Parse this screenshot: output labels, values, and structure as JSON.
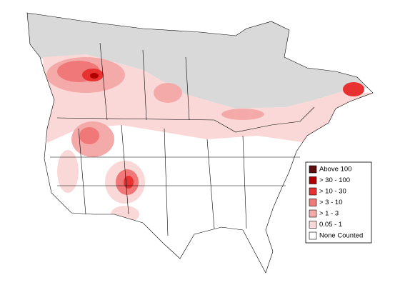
{
  "legend": {
    "items": [
      {
        "label": "Above 100",
        "color": "#5c0d0d"
      },
      {
        "label": "> 30 - 100",
        "color": "#b00000"
      },
      {
        "label": "> 10 - 30",
        "color": "#e83232"
      },
      {
        "label": "> 3 - 10",
        "color": "#f07878"
      },
      {
        "label": "> 1 - 3",
        "color": "#f5aaaa"
      },
      {
        "label": "0.05 - 1",
        "color": "#fbd8d8"
      },
      {
        "label": "None Counted",
        "color": "#ffffff"
      }
    ]
  }
}
